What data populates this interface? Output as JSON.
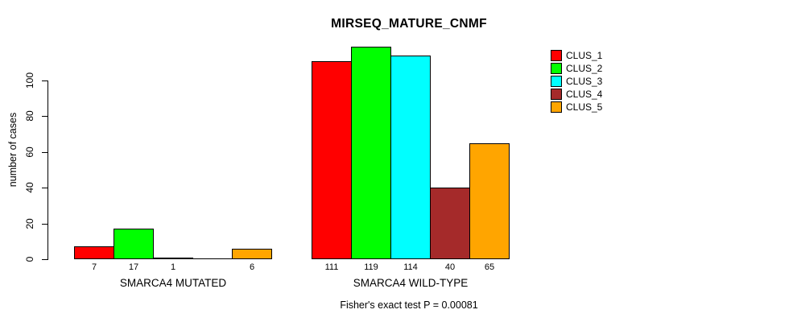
{
  "chart_data": {
    "type": "bar",
    "title": "MIRSEQ_MATURE_CNMF",
    "ylabel": "number of cases",
    "xlabel": "",
    "categories": [
      "SMARCA4 MUTATED",
      "SMARCA4 WILD-TYPE"
    ],
    "series": [
      {
        "name": "CLUS_1",
        "color": "#ff0000",
        "values": [
          7,
          111
        ]
      },
      {
        "name": "CLUS_2",
        "color": "#00ff00",
        "values": [
          17,
          119
        ]
      },
      {
        "name": "CLUS_3",
        "color": "#00ffff",
        "values": [
          1,
          114
        ]
      },
      {
        "name": "CLUS_4",
        "color": "#a52a2a",
        "values": [
          0,
          40
        ]
      },
      {
        "name": "CLUS_5",
        "color": "#ffa500",
        "values": [
          6,
          65
        ]
      }
    ],
    "bar_value_labels": [
      [
        "7",
        "17",
        "1",
        "",
        "6"
      ],
      [
        "111",
        "119",
        "114",
        "40",
        "65"
      ]
    ],
    "yticks": [
      0,
      20,
      40,
      60,
      80,
      100
    ],
    "ylim": [
      0,
      119
    ],
    "grid": false,
    "legend_position": "right",
    "annotation": "Fisher's exact test P = 0.00081"
  }
}
